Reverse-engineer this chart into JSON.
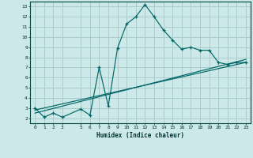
{
  "title": "",
  "xlabel": "Humidex (Indice chaleur)",
  "background_color": "#cce8e8",
  "grid_color": "#a8cccc",
  "line_color": "#006666",
  "xlim": [
    -0.5,
    23.5
  ],
  "ylim": [
    1.5,
    13.5
  ],
  "xticks": [
    0,
    1,
    2,
    3,
    5,
    6,
    7,
    8,
    9,
    10,
    11,
    12,
    13,
    14,
    15,
    16,
    17,
    18,
    19,
    20,
    21,
    22,
    23
  ],
  "xtick_labels": [
    "0",
    "1",
    "2",
    "3",
    "5",
    "6",
    "7",
    "8",
    "9",
    "10",
    "11",
    "12",
    "13",
    "14",
    "15",
    "16",
    "17",
    "18",
    "19",
    "20",
    "21",
    "22",
    "23"
  ],
  "yticks": [
    2,
    3,
    4,
    5,
    6,
    7,
    8,
    9,
    10,
    11,
    12,
    13
  ],
  "line1_x": [
    0,
    1,
    2,
    3,
    5,
    6,
    7,
    8,
    9,
    10,
    11,
    12,
    13,
    14,
    15,
    16,
    17,
    18,
    19,
    20,
    21,
    22,
    23
  ],
  "line1_y": [
    3.0,
    2.1,
    2.5,
    2.1,
    2.9,
    2.3,
    7.0,
    3.2,
    8.9,
    11.3,
    12.0,
    13.2,
    12.0,
    10.7,
    9.7,
    8.8,
    9.0,
    8.7,
    8.7,
    7.5,
    7.3,
    7.5,
    7.5
  ],
  "line2_x": [
    0,
    23
  ],
  "line2_y": [
    2.8,
    7.5
  ],
  "line3_x": [
    0,
    23
  ],
  "line3_y": [
    2.5,
    7.8
  ]
}
